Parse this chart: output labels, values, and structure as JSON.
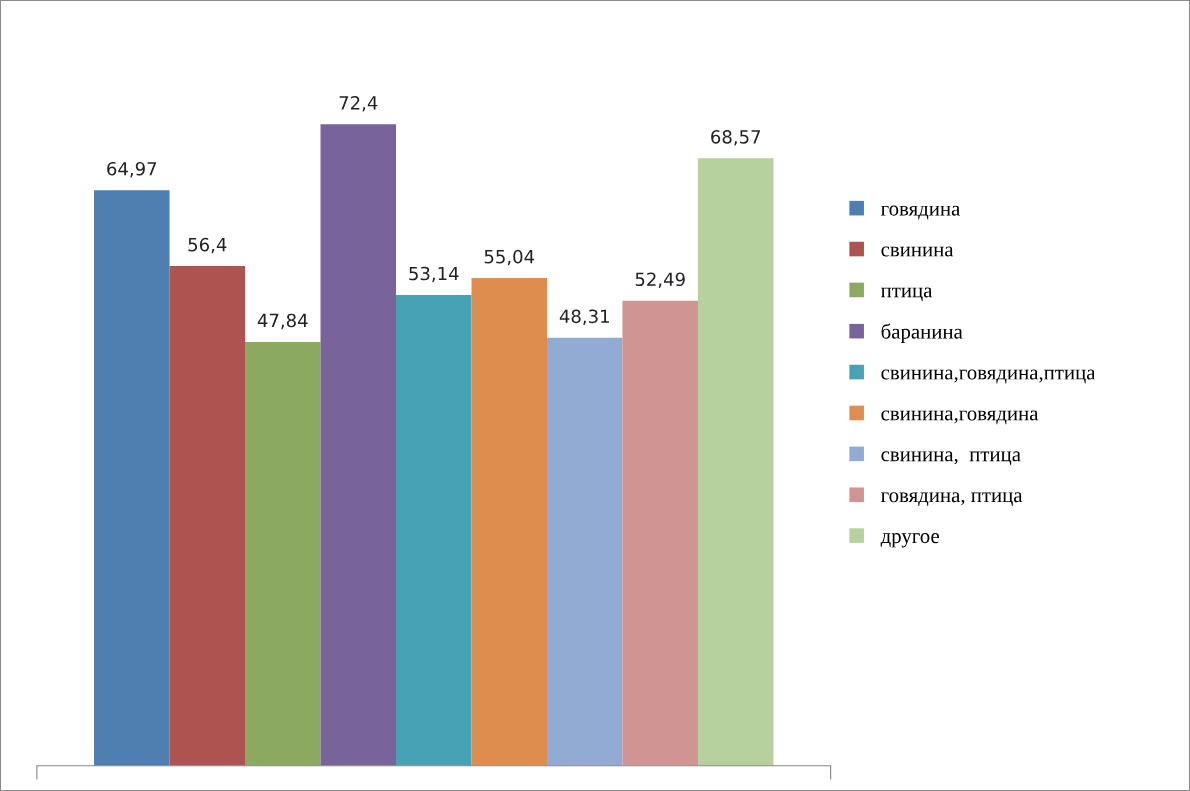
{
  "chart_data": {
    "type": "bar",
    "categories": [
      null
    ],
    "legend": "right",
    "grid": false,
    "series": [
      {
        "name": "говядина",
        "color": "#4f7fb0",
        "values": [
          64.97
        ],
        "value_labels": [
          "64,97"
        ]
      },
      {
        "name": "свинина",
        "color": "#ae5350",
        "values": [
          56.4
        ],
        "value_labels": [
          "56,4"
        ]
      },
      {
        "name": "птица",
        "color": "#8caa5f",
        "values": [
          47.84
        ],
        "value_labels": [
          "47,84"
        ]
      },
      {
        "name": "баранина",
        "color": "#78649a",
        "values": [
          72.4
        ],
        "value_labels": [
          "72,4"
        ]
      },
      {
        "name": "свинина,говядина,птица",
        "color": "#47a2b5",
        "values": [
          53.14
        ],
        "value_labels": [
          "53,14"
        ]
      },
      {
        "name": "свинина,говядина",
        "color": "#df8c4f",
        "values": [
          55.04
        ],
        "value_labels": [
          "55,04"
        ]
      },
      {
        "name": "свинина,  птица",
        "color": "#91abd2",
        "values": [
          48.31
        ],
        "value_labels": [
          "48,31"
        ]
      },
      {
        "name": "говядина, птица",
        "color": "#d09492",
        "values": [
          52.49
        ],
        "value_labels": [
          "52,49"
        ]
      },
      {
        "name": "другое",
        "color": "#b7d19e",
        "values": [
          68.57
        ],
        "value_labels": [
          "68,57"
        ]
      }
    ]
  }
}
